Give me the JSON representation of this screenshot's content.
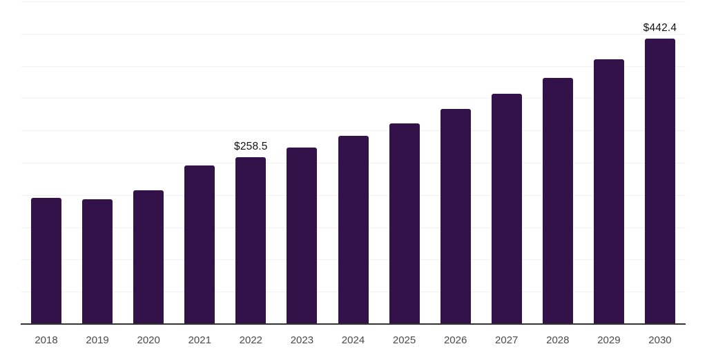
{
  "chart_data": {
    "type": "bar",
    "title": "",
    "xlabel": "",
    "ylabel": "",
    "categories": [
      "2018",
      "2019",
      "2020",
      "2021",
      "2022",
      "2023",
      "2024",
      "2025",
      "2026",
      "2027",
      "2028",
      "2029",
      "2030"
    ],
    "values": [
      195.5,
      193.8,
      207.2,
      246.0,
      258.5,
      273.8,
      291.5,
      311.1,
      333.1,
      357.3,
      381.1,
      410.6,
      442.4
    ],
    "data_labels": [
      {
        "index": 4,
        "text": "$258.5"
      },
      {
        "index": 12,
        "text": "$442.4"
      }
    ],
    "ylim": [
      0,
      500
    ],
    "gridline_interval": 50,
    "grid": "horizontal",
    "legend": "none",
    "y_tick_labels_visible": false,
    "colors": {
      "bar": "#33124a",
      "gridline": "#f2f2f2",
      "axis_line": "#333333",
      "tick_label": "#4a4a4a",
      "data_label": "#111111",
      "background": "#ffffff"
    }
  }
}
